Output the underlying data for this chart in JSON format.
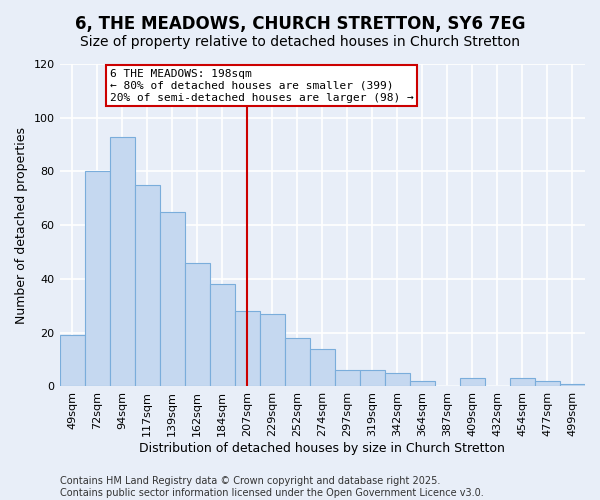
{
  "title": "6, THE MEADOWS, CHURCH STRETTON, SY6 7EG",
  "subtitle": "Size of property relative to detached houses in Church Stretton",
  "xlabel": "Distribution of detached houses by size in Church Stretton",
  "ylabel": "Number of detached properties",
  "categories": [
    "49sqm",
    "72sqm",
    "94sqm",
    "117sqm",
    "139sqm",
    "162sqm",
    "184sqm",
    "207sqm",
    "229sqm",
    "252sqm",
    "274sqm",
    "297sqm",
    "319sqm",
    "342sqm",
    "364sqm",
    "387sqm",
    "409sqm",
    "432sqm",
    "454sqm",
    "477sqm",
    "499sqm"
  ],
  "values": [
    19,
    80,
    93,
    75,
    65,
    46,
    38,
    28,
    27,
    18,
    14,
    6,
    6,
    5,
    2,
    0,
    3,
    0,
    3,
    2,
    1
  ],
  "bar_color": "#c5d8f0",
  "bar_edge_color": "#7aaddb",
  "vline_x_index": 7,
  "vline_color": "#cc0000",
  "annotation_line1": "6 THE MEADOWS: 198sqm",
  "annotation_line2": "← 80% of detached houses are smaller (399)",
  "annotation_line3": "20% of semi-detached houses are larger (98) →",
  "annotation_box_color": "#ffffff",
  "annotation_box_edge_color": "#cc0000",
  "ylim": [
    0,
    120
  ],
  "yticks": [
    0,
    20,
    40,
    60,
    80,
    100,
    120
  ],
  "footer_text": "Contains HM Land Registry data © Crown copyright and database right 2025.\nContains public sector information licensed under the Open Government Licence v3.0.",
  "background_color": "#e8eef8",
  "grid_color": "#ffffff",
  "title_fontsize": 12,
  "subtitle_fontsize": 10,
  "axis_label_fontsize": 9,
  "tick_fontsize": 8,
  "annotation_fontsize": 8,
  "footer_fontsize": 7
}
